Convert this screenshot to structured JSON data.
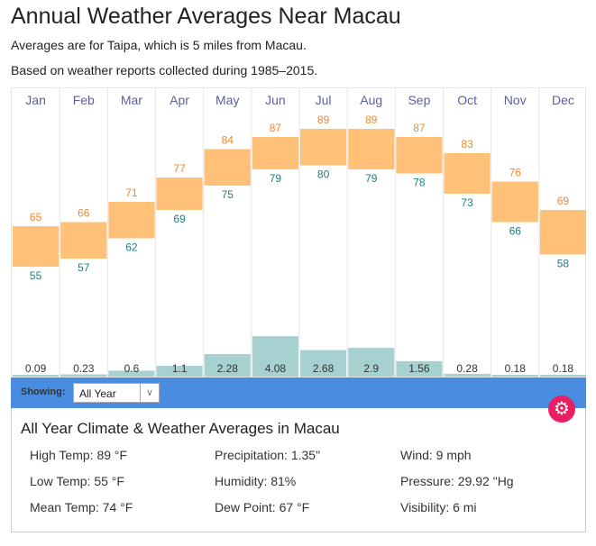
{
  "title": "Annual Weather Averages Near Macau",
  "subtitle1": "Averages are for Taipa, which is 5 miles from Macau.",
  "subtitle2": "Based on weather reports collected during 1985–2015.",
  "chart_data": {
    "type": "bar",
    "categories": [
      "Jan",
      "Feb",
      "Mar",
      "Apr",
      "May",
      "Jun",
      "Jul",
      "Aug",
      "Sep",
      "Oct",
      "Nov",
      "Dec"
    ],
    "series": [
      {
        "name": "High Temp (°F)",
        "values": [
          65,
          66,
          71,
          77,
          84,
          87,
          89,
          89,
          87,
          83,
          76,
          69
        ]
      },
      {
        "name": "Low Temp (°F)",
        "values": [
          55,
          57,
          62,
          69,
          75,
          79,
          80,
          79,
          78,
          73,
          66,
          58
        ]
      },
      {
        "name": "Precipitation (in)",
        "values": [
          0.09,
          0.23,
          0.6,
          1.1,
          2.28,
          4.08,
          2.68,
          2.9,
          1.56,
          0.28,
          0.18,
          0.18
        ]
      }
    ],
    "colors": {
      "temp": "#ffc177",
      "high": "#f0882a",
      "low": "#1f7c80",
      "precip": "#a6d1d0",
      "month": "#5c5ea0"
    }
  },
  "controls": {
    "showing_label": "Showing:",
    "selected": "All Year",
    "chevron": "∨",
    "gear": "⚙"
  },
  "summary": {
    "heading": "All Year Climate & Weather Averages in Macau",
    "stats": [
      "High Temp: 89 °F",
      "Precipitation: 1.35\"",
      "Wind: 9 mph",
      "Low Temp: 55 °F",
      "Humidity: 81%",
      "Pressure: 29.92 \"Hg",
      "Mean Temp: 74 °F",
      "Dew Point: 67 °F",
      "Visibility: 6 mi"
    ]
  }
}
